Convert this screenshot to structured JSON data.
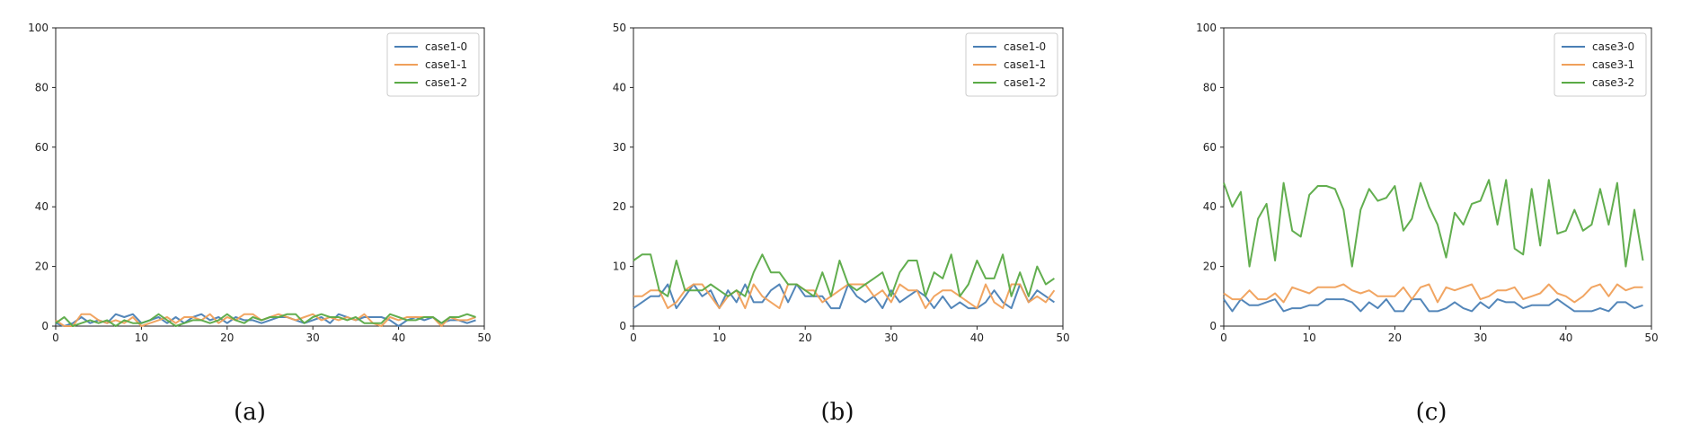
{
  "chart_data": [
    {
      "type": "line",
      "caption": "(a)",
      "xlim": [
        0,
        50
      ],
      "ylim": [
        0,
        100
      ],
      "xticks": [
        0,
        10,
        20,
        30,
        40,
        50
      ],
      "yticks": [
        0,
        20,
        40,
        60,
        80,
        100
      ],
      "grid": false,
      "legend_position": "top-right",
      "x": [
        0,
        1,
        2,
        3,
        4,
        5,
        6,
        7,
        8,
        9,
        10,
        11,
        12,
        13,
        14,
        15,
        16,
        17,
        18,
        19,
        20,
        21,
        22,
        23,
        24,
        25,
        26,
        27,
        28,
        29,
        30,
        31,
        32,
        33,
        34,
        35,
        36,
        37,
        38,
        39,
        40,
        41,
        42,
        43,
        44,
        45,
        46,
        47,
        48,
        49
      ],
      "series": [
        {
          "name": "case1-0",
          "color": "#4a7fb5",
          "values": [
            1,
            0,
            1,
            3,
            1,
            2,
            1,
            4,
            3,
            4,
            1,
            2,
            3,
            1,
            3,
            1,
            3,
            4,
            2,
            3,
            1,
            3,
            2,
            2,
            1,
            2,
            3,
            3,
            2,
            1,
            2,
            3,
            1,
            4,
            3,
            2,
            3,
            3,
            3,
            2,
            0,
            2,
            3,
            2,
            3,
            1,
            2,
            2,
            1,
            2
          ]
        },
        {
          "name": "case1-1",
          "color": "#f0a05a",
          "values": [
            2,
            0,
            0,
            4,
            4,
            2,
            1,
            2,
            1,
            3,
            0,
            1,
            2,
            3,
            1,
            3,
            3,
            2,
            4,
            1,
            3,
            2,
            4,
            4,
            2,
            3,
            4,
            3,
            2,
            3,
            4,
            2,
            3,
            2,
            3,
            2,
            4,
            1,
            0,
            3,
            2,
            3,
            3,
            3,
            3,
            0,
            3,
            2,
            2,
            3
          ]
        },
        {
          "name": "case1-2",
          "color": "#5aaa46",
          "values": [
            1,
            3,
            0,
            1,
            2,
            1,
            2,
            0,
            2,
            1,
            1,
            2,
            4,
            2,
            0,
            1,
            2,
            2,
            1,
            2,
            4,
            2,
            1,
            3,
            2,
            3,
            3,
            4,
            4,
            1,
            3,
            4,
            3,
            3,
            2,
            3,
            1,
            1,
            1,
            4,
            3,
            2,
            2,
            3,
            3,
            1,
            3,
            3,
            4,
            3
          ]
        }
      ]
    },
    {
      "type": "line",
      "caption": "(b)",
      "xlim": [
        0,
        50
      ],
      "ylim": [
        0,
        50
      ],
      "xticks": [
        0,
        10,
        20,
        30,
        40,
        50
      ],
      "yticks": [
        0,
        10,
        20,
        30,
        40,
        50
      ],
      "grid": false,
      "legend_position": "top-right",
      "x": [
        0,
        1,
        2,
        3,
        4,
        5,
        6,
        7,
        8,
        9,
        10,
        11,
        12,
        13,
        14,
        15,
        16,
        17,
        18,
        19,
        20,
        21,
        22,
        23,
        24,
        25,
        26,
        27,
        28,
        29,
        30,
        31,
        32,
        33,
        34,
        35,
        36,
        37,
        38,
        39,
        40,
        41,
        42,
        43,
        44,
        45,
        46,
        47,
        48,
        49
      ],
      "series": [
        {
          "name": "case1-0",
          "color": "#4a7fb5",
          "values": [
            3,
            4,
            5,
            5,
            7,
            3,
            5,
            7,
            5,
            6,
            3,
            6,
            4,
            7,
            4,
            4,
            6,
            7,
            4,
            7,
            5,
            5,
            5,
            3,
            3,
            7,
            5,
            4,
            5,
            3,
            6,
            4,
            5,
            6,
            5,
            3,
            5,
            3,
            4,
            3,
            3,
            4,
            6,
            4,
            3,
            7,
            4,
            6,
            5,
            4
          ]
        },
        {
          "name": "case1-1",
          "color": "#f0a05a",
          "values": [
            5,
            5,
            6,
            6,
            3,
            4,
            6,
            7,
            7,
            5,
            3,
            5,
            6,
            3,
            7,
            5,
            4,
            3,
            7,
            7,
            6,
            6,
            4,
            5,
            6,
            7,
            7,
            7,
            5,
            6,
            4,
            7,
            6,
            6,
            3,
            5,
            6,
            6,
            5,
            4,
            3,
            7,
            4,
            3,
            7,
            7,
            4,
            5,
            4,
            6
          ]
        },
        {
          "name": "case1-2",
          "color": "#5aaa46",
          "values": [
            11,
            12,
            12,
            6,
            5,
            11,
            6,
            6,
            6,
            7,
            6,
            5,
            6,
            5,
            9,
            12,
            9,
            9,
            7,
            7,
            6,
            5,
            9,
            5,
            11,
            7,
            6,
            7,
            8,
            9,
            5,
            9,
            11,
            11,
            5,
            9,
            8,
            12,
            5,
            7,
            11,
            8,
            8,
            12,
            5,
            9,
            5,
            10,
            7,
            8
          ]
        }
      ]
    },
    {
      "type": "line",
      "caption": "(c)",
      "xlim": [
        0,
        50
      ],
      "ylim": [
        0,
        100
      ],
      "xticks": [
        0,
        10,
        20,
        30,
        40,
        50
      ],
      "yticks": [
        0,
        20,
        40,
        60,
        80,
        100
      ],
      "grid": false,
      "legend_position": "top-right",
      "x": [
        0,
        1,
        2,
        3,
        4,
        5,
        6,
        7,
        8,
        9,
        10,
        11,
        12,
        13,
        14,
        15,
        16,
        17,
        18,
        19,
        20,
        21,
        22,
        23,
        24,
        25,
        26,
        27,
        28,
        29,
        30,
        31,
        32,
        33,
        34,
        35,
        36,
        37,
        38,
        39,
        40,
        41,
        42,
        43,
        44,
        45,
        46,
        47,
        48,
        49
      ],
      "series": [
        {
          "name": "case3-0",
          "color": "#4a7fb5",
          "values": [
            9,
            5,
            9,
            7,
            7,
            8,
            9,
            5,
            6,
            6,
            7,
            7,
            9,
            9,
            9,
            8,
            5,
            8,
            6,
            9,
            5,
            5,
            9,
            9,
            5,
            5,
            6,
            8,
            6,
            5,
            8,
            6,
            9,
            8,
            8,
            6,
            7,
            7,
            7,
            9,
            7,
            5,
            5,
            5,
            6,
            5,
            8,
            8,
            6,
            7
          ]
        },
        {
          "name": "case3-1",
          "color": "#f0a05a",
          "values": [
            11,
            9,
            9,
            12,
            9,
            9,
            11,
            8,
            13,
            12,
            11,
            13,
            13,
            13,
            14,
            12,
            11,
            12,
            10,
            10,
            10,
            13,
            9,
            13,
            14,
            8,
            13,
            12,
            13,
            14,
            9,
            10,
            12,
            12,
            13,
            9,
            10,
            11,
            14,
            11,
            10,
            8,
            10,
            13,
            14,
            10,
            14,
            12,
            13,
            13
          ]
        },
        {
          "name": "case3-2",
          "color": "#5aaa46",
          "values": [
            48,
            40,
            45,
            20,
            36,
            41,
            22,
            48,
            32,
            30,
            44,
            47,
            47,
            46,
            39,
            20,
            39,
            46,
            42,
            43,
            47,
            32,
            36,
            48,
            40,
            34,
            23,
            38,
            34,
            41,
            42,
            49,
            34,
            49,
            26,
            24,
            46,
            27,
            49,
            31,
            32,
            39,
            32,
            34,
            46,
            34,
            48,
            20,
            39,
            22
          ]
        }
      ]
    }
  ]
}
